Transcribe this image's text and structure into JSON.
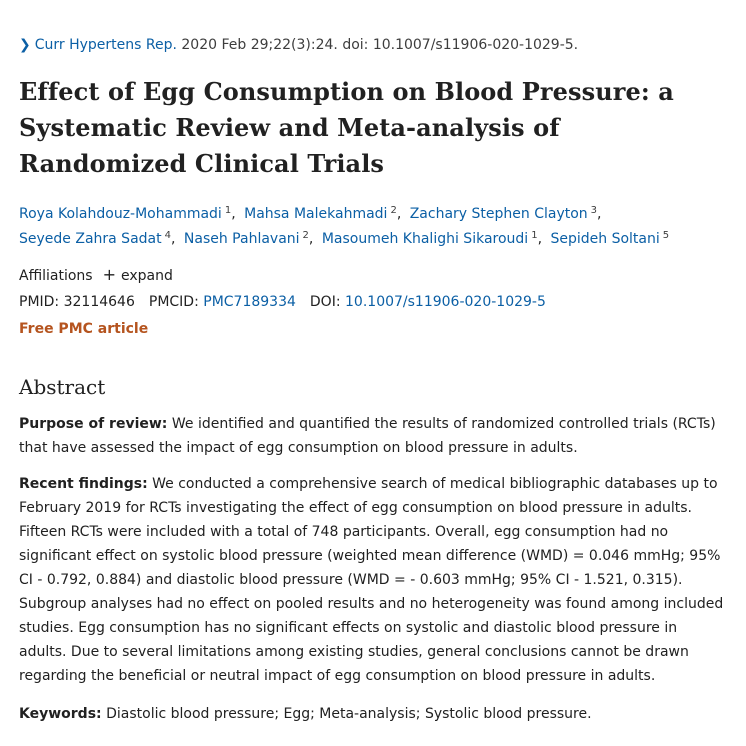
{
  "citation": {
    "journal": "Curr Hypertens Rep.",
    "details": " 2020 Feb 29;22(3):24. doi: 10.1007/s11906-020-1029-5."
  },
  "title": "Effect of Egg Consumption on Blood Pressure: a Systematic Review and Meta-analysis of Randomized Clinical Trials",
  "authors": [
    {
      "name": "Roya Kolahdouz-Mohammadi",
      "aff": "1"
    },
    {
      "name": "Mahsa Malekahmadi",
      "aff": "2"
    },
    {
      "name": "Zachary Stephen Clayton",
      "aff": "3"
    },
    {
      "name": "Seyede Zahra Sadat",
      "aff": "4"
    },
    {
      "name": "Naseh Pahlavani",
      "aff": "2"
    },
    {
      "name": "Masoumeh Khalighi Sikaroudi",
      "aff": "1"
    },
    {
      "name": "Sepideh Soltani",
      "aff": "5"
    }
  ],
  "affiliations": {
    "label": "Affiliations",
    "expand": "expand"
  },
  "ids": {
    "pmid_label": "PMID: ",
    "pmid": "32114646",
    "pmcid_label": "PMCID: ",
    "pmcid": "PMC7189334",
    "doi_label": "DOI: ",
    "doi": "10.1007/s11906-020-1029-5"
  },
  "free_pmc": "Free PMC article",
  "abstract": {
    "heading": "Abstract",
    "purpose_label": "Purpose of review:",
    "purpose_text": " We identified and quantified the results of randomized controlled trials (RCTs) that have assessed the impact of egg consumption on blood pressure in adults.",
    "findings_label": "Recent findings:",
    "findings_text": " We conducted a comprehensive search of medical bibliographic databases up to February 2019 for RCTs investigating the effect of egg consumption on blood pressure in adults. Fifteen RCTs were included with a total of 748 participants. Overall, egg consumption had no significant effect on systolic blood pressure (weighted mean difference (WMD) = 0.046 mmHg; 95% CI - 0.792, 0.884) and diastolic blood pressure (WMD = - 0.603 mmHg; 95% CI - 1.521, 0.315). Subgroup analyses had no effect on pooled results and no heterogeneity was found among included studies. Egg consumption has no significant effects on systolic and diastolic blood pressure in adults. Due to several limitations among existing studies, general conclusions cannot be drawn regarding the beneficial or neutral impact of egg consumption on blood pressure in adults.",
    "keywords_label": "Keywords:",
    "keywords_text": " Diastolic blood pressure; Egg; Meta-analysis; Systolic blood pressure."
  }
}
